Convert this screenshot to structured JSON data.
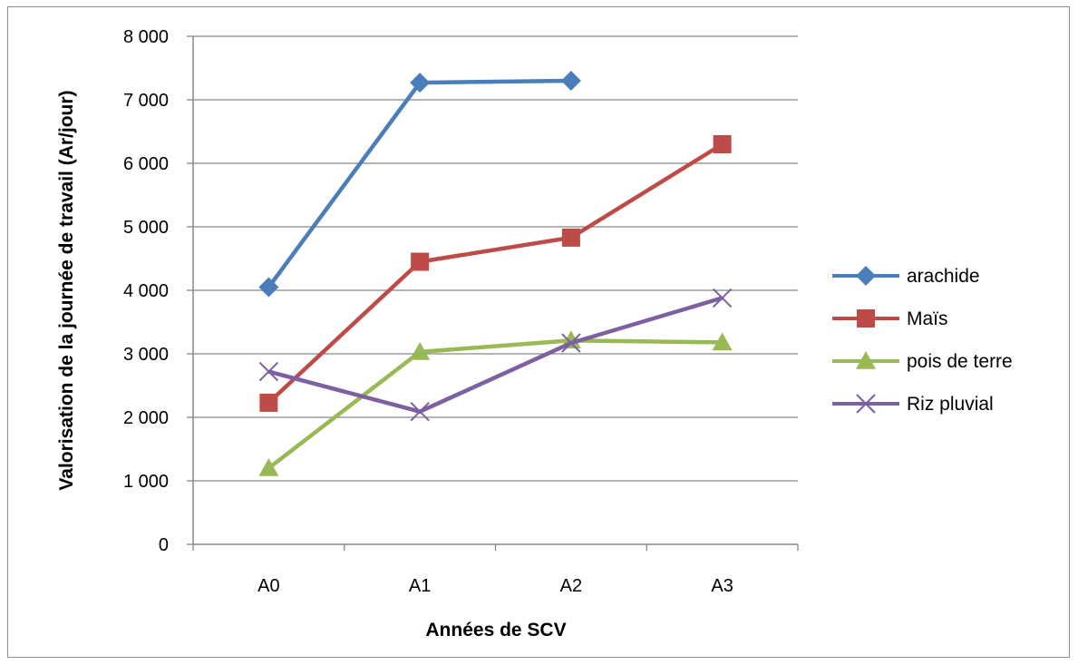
{
  "chart_data": {
    "type": "line",
    "title": "",
    "xlabel": "Années de SCV",
    "ylabel": "Valorisation de la journée de travail (Ar/jour)",
    "categories": [
      "A0",
      "A1",
      "A2",
      "A3"
    ],
    "ylim": [
      0,
      8000
    ],
    "yticks": [
      0,
      1000,
      2000,
      3000,
      4000,
      5000,
      6000,
      7000,
      8000
    ],
    "ytick_labels": [
      "0",
      "1 000",
      "2 000",
      "3 000",
      "4 000",
      "5 000",
      "6 000",
      "7 000",
      "8 000"
    ],
    "grid": true,
    "legend_position": "right",
    "series": [
      {
        "name": "arachide",
        "color": "#4a7ebb",
        "marker": "diamond",
        "values": [
          4050,
          7270,
          7300,
          null
        ]
      },
      {
        "name": "Maïs",
        "color": "#be4b48",
        "marker": "square",
        "values": [
          2230,
          4450,
          4830,
          6300
        ]
      },
      {
        "name": "pois de terre",
        "color": "#98b954",
        "marker": "triangle",
        "values": [
          1200,
          3030,
          3210,
          3180
        ]
      },
      {
        "name": "Riz pluvial",
        "color": "#7d60a0",
        "marker": "x",
        "values": [
          2720,
          2090,
          3170,
          3880
        ]
      }
    ]
  }
}
